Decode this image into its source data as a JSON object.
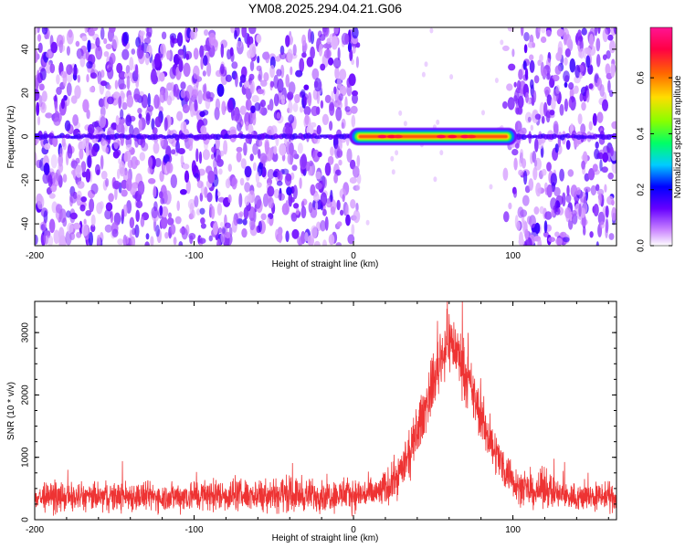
{
  "title": "YM08.2025.294.04.21.G06",
  "chart_data": [
    {
      "type": "heatmap",
      "name": "spectrogram",
      "xlabel": "Height of straight line (km)",
      "ylabel": "Frequency (Hz)",
      "xlim": [
        -200,
        165
      ],
      "ylim": [
        -50,
        50
      ],
      "xticks": [
        -200,
        -100,
        0,
        100
      ],
      "yticks": [
        -40,
        -20,
        0,
        20,
        40
      ],
      "colorbar": {
        "label": "Normalized spectral amplitude",
        "range": [
          0,
          0.78
        ],
        "ticks": [
          "0.0",
          "0.2",
          "0.4",
          "0.6"
        ],
        "tick_values": [
          0,
          0.2,
          0.4,
          0.6
        ],
        "colors": [
          "#ffffff",
          "#cc88ff",
          "#6600ff",
          "#0000ff",
          "#00ccff",
          "#00ff66",
          "#88ff00",
          "#ffdd00",
          "#ff6600",
          "#ff0044",
          "#ff1493"
        ]
      },
      "noise_regions": [
        [
          -200,
          5
        ],
        [
          95,
          165
        ]
      ],
      "quiet_region": [
        5,
        95
      ],
      "signal_band": {
        "x_start": 0,
        "x_end": 100,
        "freq_center": 0,
        "freq_halfwidth": 2.5,
        "peak_amplitude": 0.72
      }
    },
    {
      "type": "line",
      "name": "snr",
      "xlabel": "Height of straight line (km)",
      "ylabel": "SNR (10 * v/v)",
      "xlim": [
        -200,
        165
      ],
      "ylim": [
        0,
        3500
      ],
      "xticks": [
        -200,
        -100,
        0,
        100
      ],
      "yticks": [
        0,
        1000,
        2000,
        3000
      ],
      "color": "#ee3333",
      "envelope_x": [
        -200,
        -160,
        -140,
        -120,
        -100,
        -60,
        -50,
        -30,
        0,
        15,
        25,
        35,
        45,
        55,
        60,
        65,
        75,
        85,
        95,
        105,
        115,
        120,
        125,
        140,
        165
      ],
      "envelope_mid": [
        350,
        360,
        380,
        360,
        390,
        400,
        420,
        390,
        400,
        420,
        600,
        1000,
        1800,
        2600,
        2900,
        2700,
        2000,
        1300,
        800,
        500,
        420,
        560,
        420,
        360,
        360
      ],
      "envelope_amp": [
        200,
        200,
        220,
        200,
        230,
        220,
        260,
        230,
        230,
        230,
        280,
        330,
        380,
        420,
        450,
        420,
        380,
        320,
        280,
        230,
        220,
        300,
        220,
        200,
        200
      ]
    }
  ]
}
